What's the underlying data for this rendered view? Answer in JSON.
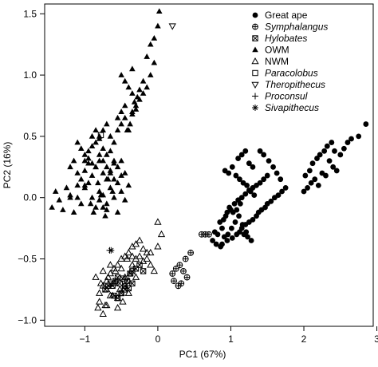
{
  "chart_data": {
    "type": "scatter",
    "xlabel": "PC1 (67%)",
    "ylabel": "PC2 (16%)",
    "xlim": [
      -1.55,
      2.95
    ],
    "ylim": [
      -1.05,
      1.58
    ],
    "xticks": [
      -1,
      0,
      1,
      2,
      3
    ],
    "yticks": [
      -1.0,
      -0.5,
      0.0,
      0.5,
      1.0,
      1.5
    ],
    "xtick_labels": [
      "−1",
      "0",
      "1",
      "2",
      "3"
    ],
    "ytick_labels": [
      "−1.0",
      "−0.5",
      "0.0",
      "0.5",
      "1.0",
      "1.5"
    ],
    "grid": false,
    "legend_position": "top-right",
    "series": [
      {
        "name": "Great ape",
        "marker": "filled-circle",
        "italic": false,
        "x": [
          0.88,
          0.95,
          1.02,
          1.08,
          1.12,
          1.15,
          1.2,
          1.25,
          1.3,
          1.35,
          1.38,
          1.42,
          1.47,
          1.5,
          1.55,
          1.6,
          1.65,
          1.7,
          1.75,
          0.85,
          0.9,
          0.95,
          1.0,
          1.05,
          1.1,
          1.15,
          1.2,
          1.25,
          1.3,
          1.35,
          1.4,
          1.45,
          1.5,
          0.78,
          0.82,
          0.88,
          0.93,
          0.98,
          1.03,
          1.08,
          1.13,
          1.18,
          1.23,
          1.28,
          0.92,
          0.97,
          1.02,
          1.07,
          1.12,
          1.17,
          1.22,
          1.27,
          1.32,
          0.75,
          0.8,
          0.86,
          0.91,
          0.96,
          1.01,
          1.06,
          1.11,
          1.16,
          1.21,
          1.1,
          1.15,
          1.2,
          1.25,
          1.3,
          1.4,
          1.45,
          1.52,
          1.58,
          1.63,
          1.68,
          2.0,
          2.05,
          2.1,
          2.15,
          2.2,
          2.25,
          2.3,
          2.35,
          2.4,
          2.45,
          2.5,
          2.55,
          2.6,
          2.65,
          2.75,
          2.85,
          2.02,
          2.08,
          2.12,
          2.18,
          2.22,
          2.28,
          2.32,
          2.38,
          2.42
        ],
        "y": [
          -0.38,
          -0.35,
          -0.33,
          -0.3,
          -0.28,
          -0.25,
          -0.22,
          -0.2,
          -0.18,
          -0.15,
          -0.12,
          -0.1,
          -0.08,
          -0.05,
          -0.03,
          0.0,
          0.02,
          0.05,
          0.08,
          -0.2,
          -0.18,
          -0.12,
          -0.1,
          -0.05,
          -0.02,
          0.0,
          0.03,
          0.06,
          0.08,
          0.1,
          0.12,
          0.15,
          0.18,
          -0.28,
          -0.3,
          -0.25,
          -0.15,
          -0.08,
          -0.12,
          -0.1,
          -0.05,
          -0.3,
          -0.32,
          -0.35,
          0.22,
          0.2,
          0.25,
          0.18,
          0.15,
          0.12,
          0.1,
          0.05,
          0.02,
          -0.35,
          -0.38,
          -0.4,
          -0.32,
          -0.3,
          -0.25,
          -0.2,
          -0.15,
          -0.22,
          -0.28,
          0.32,
          0.35,
          0.38,
          0.28,
          0.25,
          0.38,
          0.35,
          0.3,
          0.25,
          0.2,
          0.15,
          0.05,
          0.08,
          0.12,
          0.15,
          0.1,
          0.2,
          0.18,
          0.3,
          0.25,
          0.22,
          0.35,
          0.4,
          0.45,
          0.48,
          0.5,
          0.6,
          0.18,
          0.22,
          0.28,
          0.32,
          0.35,
          0.38,
          0.42,
          0.45,
          0.38
        ]
      },
      {
        "name": "Symphalangus",
        "marker": "circle-plus",
        "italic": true,
        "x": [
          0.2,
          0.25,
          0.3,
          0.35,
          0.4,
          0.32,
          0.28,
          0.22,
          0.38,
          0.45,
          0.6,
          0.65,
          0.7
        ],
        "y": [
          -0.62,
          -0.58,
          -0.55,
          -0.6,
          -0.65,
          -0.7,
          -0.72,
          -0.68,
          -0.5,
          -0.45,
          -0.3,
          -0.3,
          -0.3
        ]
      },
      {
        "name": "Hylobates",
        "marker": "boxed-x",
        "italic": true,
        "x": [
          -0.72,
          -0.68,
          -0.65,
          -0.62,
          -0.58,
          -0.55,
          -0.52,
          -0.48,
          -0.45,
          -0.42,
          -0.38,
          -0.35,
          -0.3,
          -0.25,
          -0.2,
          -0.6,
          -0.55,
          -0.5,
          -0.45,
          -0.4,
          -0.35
        ],
        "y": [
          -0.75,
          -0.72,
          -0.7,
          -0.72,
          -0.68,
          -0.65,
          -0.7,
          -0.66,
          -0.72,
          -0.68,
          -0.62,
          -0.6,
          -0.58,
          -0.55,
          -0.6,
          -0.8,
          -0.82,
          -0.78,
          -0.75,
          -0.74,
          -0.7
        ]
      },
      {
        "name": "OWM",
        "marker": "filled-triangle",
        "italic": false,
        "x": [
          -1.45,
          -1.4,
          -1.35,
          -1.3,
          -1.25,
          -1.2,
          -1.15,
          -1.1,
          -1.05,
          -1.0,
          -0.95,
          -0.9,
          -0.85,
          -0.8,
          -0.75,
          -0.7,
          -0.65,
          -0.6,
          -0.55,
          -0.5,
          -0.45,
          -0.4,
          -1.2,
          -1.15,
          -1.1,
          -1.05,
          -1.0,
          -0.95,
          -0.9,
          -0.85,
          -0.8,
          -0.75,
          -0.7,
          -0.65,
          -0.6,
          -0.55,
          -0.5,
          -1.1,
          -1.05,
          -1.0,
          -0.95,
          -0.9,
          -0.85,
          -0.8,
          -0.75,
          -0.7,
          -0.65,
          -0.6,
          -1.0,
          -0.95,
          -0.9,
          -0.85,
          -0.8,
          -0.75,
          -0.7,
          -0.65,
          -0.6,
          -0.55,
          -0.5,
          -0.45,
          -0.9,
          -0.85,
          -0.8,
          -0.75,
          -0.7,
          -0.65,
          -0.6,
          -0.55,
          -0.5,
          -0.45,
          -0.4,
          -0.35,
          -0.3,
          -0.25,
          -0.2,
          -0.15,
          -0.1,
          -0.05,
          -0.55,
          -0.5,
          -0.45,
          -0.42,
          -0.38,
          -0.35,
          -0.3,
          -0.35,
          -0.32,
          -0.28,
          -0.25,
          -0.2,
          -0.15,
          -0.1,
          -0.05,
          0.0,
          0.02,
          -0.5,
          -0.45,
          -0.4,
          -0.35,
          -0.8,
          -0.75,
          -0.7,
          -0.68,
          -0.62,
          -1.2,
          -1.1,
          -1.0,
          -0.92,
          -0.88,
          -0.82,
          -0.78,
          -0.72
        ],
        "y": [
          -0.08,
          0.05,
          -0.02,
          -0.1,
          0.08,
          0.02,
          -0.12,
          0.0,
          -0.05,
          0.1,
          0.12,
          0.0,
          -0.08,
          0.05,
          0.02,
          -0.05,
          0.08,
          0.0,
          -0.12,
          0.05,
          -0.02,
          0.1,
          0.25,
          0.3,
          0.2,
          0.15,
          0.22,
          0.28,
          0.18,
          0.25,
          0.3,
          0.2,
          0.15,
          0.22,
          0.28,
          0.12,
          0.18,
          0.45,
          0.4,
          0.35,
          0.38,
          0.42,
          0.45,
          0.5,
          0.4,
          0.35,
          0.38,
          0.3,
          0.3,
          0.32,
          0.28,
          0.25,
          0.35,
          0.3,
          0.25,
          0.2,
          0.15,
          0.25,
          0.3,
          0.2,
          0.5,
          0.55,
          0.48,
          0.55,
          0.6,
          0.5,
          0.45,
          0.55,
          0.6,
          0.65,
          0.55,
          0.7,
          0.75,
          0.8,
          0.85,
          0.9,
          1.0,
          1.1,
          0.65,
          0.7,
          0.75,
          0.55,
          0.6,
          0.68,
          0.72,
          0.85,
          0.78,
          0.82,
          0.88,
          0.95,
          1.15,
          1.25,
          1.3,
          1.4,
          1.52,
          1.0,
          0.95,
          0.9,
          1.05,
          -0.02,
          -0.08,
          -0.1,
          0.15,
          0.05,
          0.0,
          0.1,
          0.08,
          -0.05,
          -0.12,
          0.12,
          0.02,
          -0.15
        ]
      },
      {
        "name": "NWM",
        "marker": "open-triangle",
        "italic": false,
        "x": [
          -0.85,
          -0.82,
          -0.8,
          -0.78,
          -0.75,
          -0.72,
          -0.7,
          -0.68,
          -0.65,
          -0.62,
          -0.6,
          -0.58,
          -0.55,
          -0.52,
          -0.5,
          -0.48,
          -0.45,
          -0.42,
          -0.4,
          -0.38,
          -0.35,
          -0.3,
          -0.25,
          -0.2,
          -0.15,
          -0.1,
          -0.05,
          0.0,
          0.05,
          -0.8,
          -0.75,
          -0.7,
          -0.65,
          -0.6,
          -0.55,
          -0.5,
          -0.45,
          -0.4,
          -0.35,
          -0.3,
          -0.25,
          -0.2,
          -0.15,
          -0.1,
          -0.75,
          -0.7,
          -0.65,
          -0.6,
          -0.55,
          -0.5,
          -0.45,
          -0.4,
          -0.3,
          0.0,
          -0.35
        ],
        "y": [
          -0.65,
          -0.9,
          -0.85,
          -0.7,
          -0.6,
          -0.88,
          -0.75,
          -0.65,
          -0.55,
          -0.8,
          -0.7,
          -0.6,
          -0.9,
          -0.75,
          -0.58,
          -0.85,
          -0.65,
          -0.5,
          -0.78,
          -0.62,
          -0.55,
          -0.5,
          -0.48,
          -0.52,
          -0.45,
          -0.55,
          -0.6,
          -0.4,
          -0.3,
          -0.78,
          -0.72,
          -0.68,
          -0.62,
          -0.58,
          -0.55,
          -0.5,
          -0.48,
          -0.45,
          -0.4,
          -0.38,
          -0.35,
          -0.42,
          -0.5,
          -0.45,
          -0.95,
          -0.88,
          -0.8,
          -0.7,
          -0.82,
          -0.78,
          -0.72,
          -0.68,
          -0.65,
          -0.2,
          -0.48
        ]
      },
      {
        "name": "Paracolobus",
        "marker": "open-square",
        "italic": true,
        "x": [
          -0.78
        ],
        "y": [
          0.51
        ]
      },
      {
        "name": "Theropithecus",
        "marker": "open-inverted-triangle",
        "italic": true,
        "x": [
          0.2
        ],
        "y": [
          1.4
        ]
      },
      {
        "name": "Proconsul",
        "marker": "plus",
        "italic": true,
        "x": [
          -0.66
        ],
        "y": [
          -0.43
        ]
      },
      {
        "name": "Sivapithecus",
        "marker": "asterisk",
        "italic": true,
        "x": [
          -0.64
        ],
        "y": [
          -0.43
        ]
      }
    ]
  }
}
